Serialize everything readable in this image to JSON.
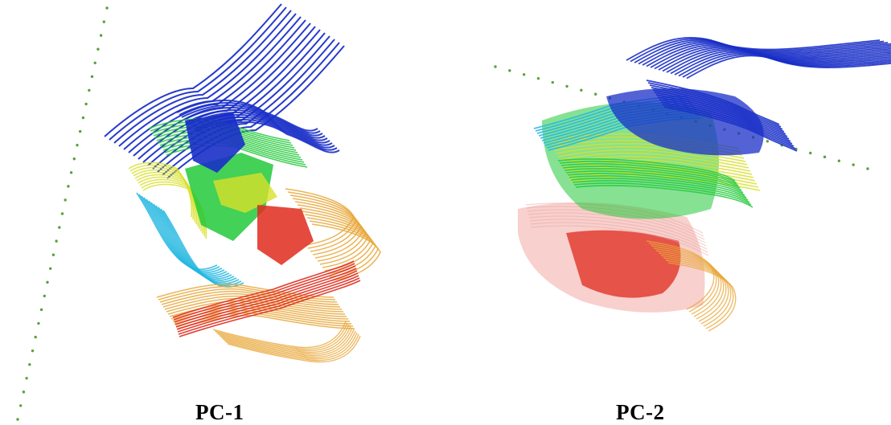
{
  "figure": {
    "panels": [
      {
        "label": "PC-1"
      },
      {
        "label": "PC-2"
      }
    ],
    "colors": {
      "blue": "#1a2fc8",
      "cyan": "#23b7e0",
      "green": "#22c93a",
      "yellow": "#d8e02c",
      "orange": "#e8a73a",
      "red": "#e02a1c",
      "axis_dots": "#58a23a"
    }
  }
}
